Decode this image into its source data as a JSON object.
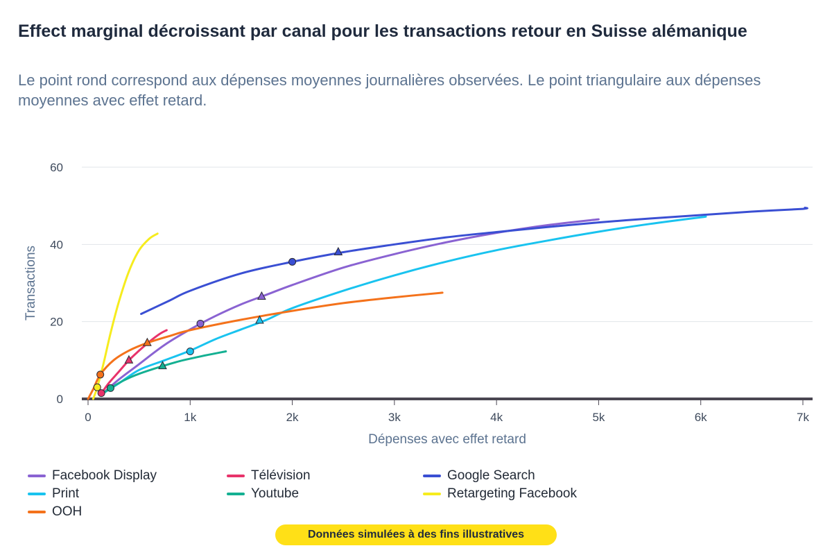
{
  "header": {
    "title": "Effect marginal décroissant par canal pour les transactions retour en Suisse alémanique",
    "subtitle": "Le point rond correspond aux dépenses moyennes journalières observées. Le point triangulaire aux dépenses moyennes avec effet retard."
  },
  "note": "Données simulées à des fins illustratives",
  "chart_data": {
    "type": "line",
    "xlabel": "Dépenses avec effet retard",
    "ylabel": "Transactions",
    "xlim": [
      0,
      7000
    ],
    "ylim": [
      0,
      60
    ],
    "x_ticks": [
      0,
      1000,
      2000,
      3000,
      4000,
      5000,
      6000,
      7000
    ],
    "x_tick_labels": [
      "0",
      "1k",
      "2k",
      "3k",
      "4k",
      "5k",
      "6k",
      "7k"
    ],
    "y_ticks": [
      0,
      20,
      40,
      60
    ],
    "y_tick_labels": [
      "0",
      "20",
      "40",
      "60"
    ],
    "grid": "horizontal",
    "legend_position": "bottom",
    "series": [
      {
        "name": "Facebook Display",
        "color": "#8a63d2",
        "points": [
          [
            150,
            1.5
          ],
          [
            300,
            5
          ],
          [
            500,
            9
          ],
          [
            750,
            14
          ],
          [
            1000,
            18
          ],
          [
            1250,
            21.5
          ],
          [
            1500,
            24.5
          ],
          [
            1750,
            27
          ],
          [
            2000,
            29.5
          ],
          [
            2500,
            34
          ],
          [
            3000,
            37.5
          ],
          [
            3500,
            40.5
          ],
          [
            4000,
            43
          ],
          [
            4500,
            45
          ],
          [
            5000,
            46.5
          ]
        ],
        "observed": [
          1100,
          19.5
        ],
        "lagged": [
          1700,
          26.5
        ]
      },
      {
        "name": "Télévision",
        "color": "#e8336b",
        "points": [
          [
            120,
            1
          ],
          [
            200,
            4
          ],
          [
            300,
            7
          ],
          [
            400,
            10
          ],
          [
            500,
            12.5
          ],
          [
            600,
            14.8
          ],
          [
            700,
            16.8
          ],
          [
            770,
            17.8
          ]
        ],
        "observed": [
          130,
          1.5
        ],
        "lagged": [
          400,
          10
        ]
      },
      {
        "name": "Google Search",
        "color": "#3a4fd3",
        "points": [
          [
            520,
            22
          ],
          [
            800,
            25.5
          ],
          [
            1000,
            28
          ],
          [
            1500,
            32.5
          ],
          [
            2000,
            35.5
          ],
          [
            2500,
            38
          ],
          [
            3000,
            40
          ],
          [
            3500,
            41.8
          ],
          [
            4000,
            43.2
          ],
          [
            4500,
            44.5
          ],
          [
            5000,
            45.7
          ],
          [
            5500,
            46.7
          ],
          [
            6000,
            47.6
          ],
          [
            6500,
            48.5
          ],
          [
            7000,
            49.2
          ],
          [
            7020,
            49.5
          ]
        ],
        "observed": [
          2000,
          35.5
        ],
        "lagged": [
          2450,
          38
        ]
      },
      {
        "name": "Print",
        "color": "#19c3ef",
        "points": [
          [
            150,
            1.5
          ],
          [
            300,
            4
          ],
          [
            500,
            7.5
          ],
          [
            750,
            10
          ],
          [
            1000,
            12.5
          ],
          [
            1250,
            15.5
          ],
          [
            1500,
            18
          ],
          [
            1750,
            20.5
          ],
          [
            2000,
            23.5
          ],
          [
            2500,
            28
          ],
          [
            3000,
            32
          ],
          [
            3500,
            35.5
          ],
          [
            4000,
            38.5
          ],
          [
            4500,
            41
          ],
          [
            5000,
            43.3
          ],
          [
            5500,
            45.3
          ],
          [
            6050,
            47.2
          ]
        ],
        "observed": [
          1000,
          12.3
        ],
        "lagged": [
          1680,
          20.3
        ]
      },
      {
        "name": "Youtube",
        "color": "#14b092",
        "points": [
          [
            150,
            1.5
          ],
          [
            220,
            2.8
          ],
          [
            350,
            4.8
          ],
          [
            500,
            6.5
          ],
          [
            730,
            8.5
          ],
          [
            900,
            9.8
          ],
          [
            1100,
            11
          ],
          [
            1350,
            12.3
          ]
        ],
        "observed": [
          220,
          2.8
        ],
        "lagged": [
          730,
          8.5
        ]
      },
      {
        "name": "Retargeting Facebook",
        "color": "#f6ec1e",
        "points": [
          [
            50,
            0
          ],
          [
            90,
            3
          ],
          [
            150,
            9
          ],
          [
            220,
            17
          ],
          [
            300,
            25
          ],
          [
            400,
            33
          ],
          [
            500,
            38.5
          ],
          [
            600,
            41.5
          ],
          [
            680,
            42.8
          ]
        ],
        "observed": [
          90,
          3
        ],
        "lagged": null
      },
      {
        "name": "OOH",
        "color": "#f4721b",
        "points": [
          [
            0,
            0
          ],
          [
            50,
            2.5
          ],
          [
            120,
            6.3
          ],
          [
            250,
            10
          ],
          [
            400,
            12.5
          ],
          [
            580,
            14.5
          ],
          [
            800,
            16.3
          ],
          [
            1000,
            17.8
          ],
          [
            1500,
            20.5
          ],
          [
            2000,
            22.8
          ],
          [
            2500,
            24.8
          ],
          [
            3000,
            26.3
          ],
          [
            3470,
            27.5
          ]
        ],
        "observed": [
          120,
          6.3
        ],
        "lagged": [
          580,
          14.5
        ]
      }
    ]
  },
  "legend_order": [
    0,
    1,
    2,
    3,
    4,
    5,
    6
  ]
}
